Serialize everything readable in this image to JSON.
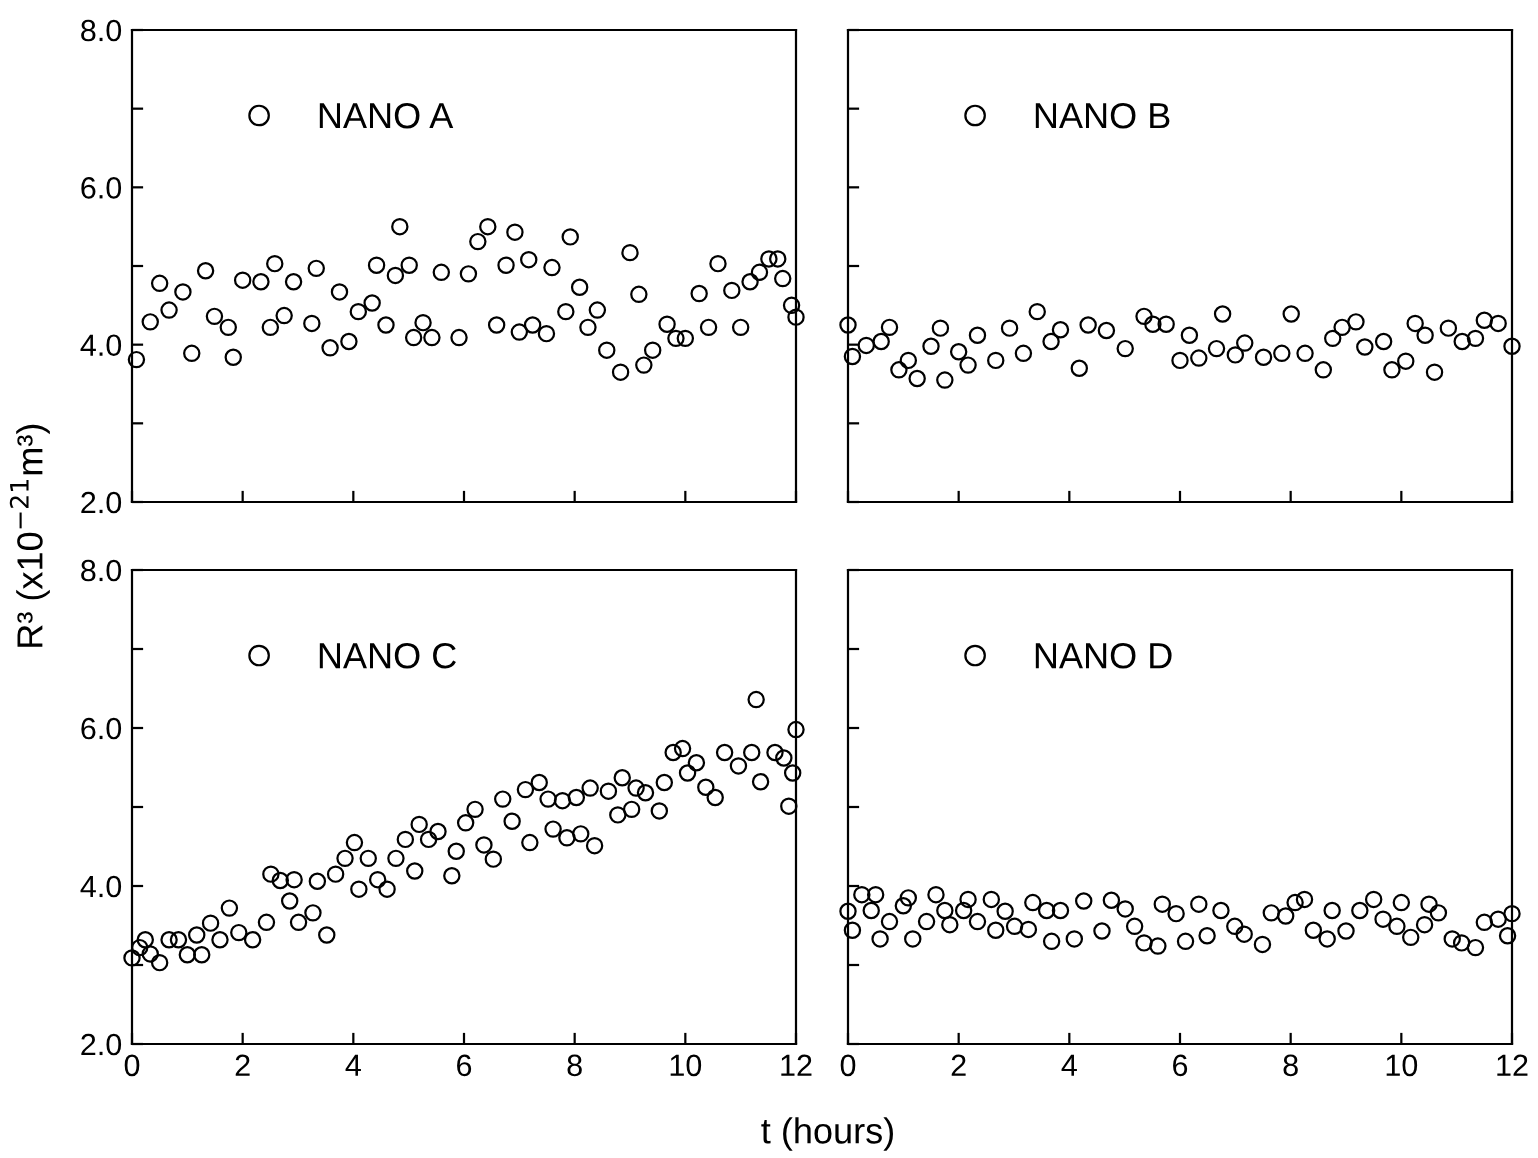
{
  "chart_data": [
    {
      "type": "scatter",
      "ylabel": "R³ (x10$^{−21}$m³)",
      "xlim": [
        0,
        12
      ],
      "ylim": [
        2,
        8
      ],
      "xticks": [
        0,
        2,
        4,
        6,
        8,
        10,
        12
      ],
      "yticks": [
        {
          "value": 2,
          "label": "2.0"
        },
        {
          "value": 3,
          "label": null
        },
        {
          "value": 4,
          "label": "4.0"
        },
        {
          "value": 5,
          "label": null
        },
        {
          "value": 6,
          "label": "6.0"
        },
        {
          "value": 7,
          "label": null
        },
        {
          "value": 8,
          "label": "8.0"
        }
      ],
      "tick_labels": "y",
      "marker": "circle",
      "legend": "top left",
      "grid": false,
      "series": [
        {
          "name": "NANO A",
          "color": "#000000",
          "x": [
            0.08,
            0.33,
            0.5,
            0.67,
            0.92,
            1.08,
            1.33,
            1.49,
            1.74,
            1.83,
            2.0,
            2.33,
            2.5,
            2.58,
            2.75,
            2.92,
            3.25,
            3.33,
            3.58,
            3.75,
            3.92,
            4.09,
            4.34,
            4.42,
            4.59,
            4.76,
            4.84,
            5.01,
            5.09,
            5.26,
            5.42,
            5.59,
            5.91,
            6.08,
            6.25,
            6.43,
            6.59,
            6.76,
            6.92,
            7.0,
            7.17,
            7.24,
            7.49,
            7.59,
            7.84,
            7.92,
            8.09,
            8.24,
            8.41,
            8.58,
            8.83,
            9.0,
            9.16,
            9.25,
            9.41,
            9.67,
            9.83,
            10.0,
            10.25,
            10.42,
            10.59,
            10.84,
            11.0,
            11.17,
            11.34,
            11.51,
            11.67,
            11.76,
            11.92,
            12.0
          ],
          "values": [
            3.81,
            4.29,
            4.78,
            4.44,
            4.67,
            3.89,
            4.94,
            4.36,
            4.22,
            3.84,
            4.82,
            4.8,
            4.22,
            5.03,
            4.37,
            4.8,
            4.27,
            4.97,
            3.96,
            4.67,
            4.04,
            4.42,
            4.53,
            5.01,
            4.25,
            4.88,
            5.5,
            5.01,
            4.09,
            4.28,
            4.09,
            4.92,
            4.09,
            4.9,
            5.31,
            5.5,
            4.25,
            5.01,
            5.43,
            4.16,
            5.08,
            4.25,
            4.14,
            4.98,
            4.42,
            5.37,
            4.73,
            4.22,
            4.44,
            3.93,
            3.65,
            5.17,
            4.64,
            3.74,
            3.93,
            4.26,
            4.08,
            4.08,
            4.65,
            4.22,
            5.03,
            4.69,
            4.22,
            4.8,
            4.92,
            5.09,
            5.09,
            4.84,
            4.5,
            4.35
          ]
        }
      ]
    },
    {
      "type": "scatter",
      "xlim": [
        0,
        12
      ],
      "ylim": [
        2,
        8
      ],
      "xticks": [
        0,
        2,
        4,
        6,
        8,
        10,
        12
      ],
      "yticks": [
        2,
        3,
        4,
        5,
        6,
        7,
        8
      ],
      "tick_labels": false,
      "marker": "circle",
      "legend": "top left",
      "grid": false,
      "series": [
        {
          "name": "NANO B",
          "color": "#000000",
          "x": [
            0,
            0.08,
            0.33,
            0.6,
            0.75,
            0.92,
            1.09,
            1.25,
            1.5,
            1.67,
            1.75,
            2.0,
            2.17,
            2.34,
            2.67,
            2.92,
            3.17,
            3.42,
            3.67,
            3.84,
            4.18,
            4.34,
            4.67,
            5.01,
            5.35,
            5.51,
            5.75,
            6.0,
            6.17,
            6.34,
            6.66,
            6.77,
            7.0,
            7.17,
            7.51,
            7.84,
            8.01,
            8.26,
            8.59,
            8.76,
            8.93,
            9.18,
            9.34,
            9.68,
            9.83,
            10.08,
            10.25,
            10.43,
            10.6,
            10.85,
            11.1,
            11.34,
            11.5,
            11.75,
            12.0
          ],
          "values": [
            4.25,
            3.85,
            3.99,
            4.04,
            4.22,
            3.68,
            3.8,
            3.57,
            3.98,
            4.21,
            3.55,
            3.91,
            3.74,
            4.12,
            3.8,
            4.21,
            3.89,
            4.42,
            4.04,
            4.19,
            3.7,
            4.25,
            4.18,
            3.95,
            4.36,
            4.26,
            4.26,
            3.8,
            4.12,
            3.83,
            3.95,
            4.39,
            3.87,
            4.02,
            3.84,
            3.89,
            4.39,
            3.89,
            3.68,
            4.08,
            4.22,
            4.29,
            3.97,
            4.04,
            3.68,
            3.79,
            4.27,
            4.12,
            3.65,
            4.21,
            4.04,
            4.08,
            4.31,
            4.27,
            3.98
          ]
        }
      ]
    },
    {
      "type": "scatter",
      "xlabel": "t (hours)",
      "xlim": [
        0,
        12
      ],
      "ylim": [
        2,
        8
      ],
      "xticks": [
        0,
        2,
        4,
        6,
        8,
        10,
        12
      ],
      "yticks": [
        {
          "value": 2,
          "label": "2.0"
        },
        {
          "value": 3,
          "label": null
        },
        {
          "value": 4,
          "label": "4.0"
        },
        {
          "value": 5,
          "label": null
        },
        {
          "value": 6,
          "label": "6.0"
        },
        {
          "value": 7,
          "label": null
        },
        {
          "value": 8,
          "label": "8.0"
        }
      ],
      "marker": "circle",
      "legend": "top left",
      "grid": false,
      "series": [
        {
          "name": "NANO C",
          "color": "#000000",
          "x": [
            0,
            0.14,
            0.24,
            0.33,
            0.5,
            0.67,
            0.84,
            1.0,
            1.17,
            1.26,
            1.42,
            1.59,
            1.76,
            1.93,
            2.18,
            2.43,
            2.51,
            2.68,
            2.85,
            2.93,
            3.01,
            3.27,
            3.35,
            3.52,
            3.68,
            3.85,
            4.02,
            4.1,
            4.27,
            4.44,
            4.61,
            4.77,
            4.94,
            5.11,
            5.19,
            5.36,
            5.53,
            5.78,
            5.86,
            6.03,
            6.2,
            6.36,
            6.53,
            6.7,
            6.87,
            7.11,
            7.19,
            7.36,
            7.52,
            7.61,
            7.78,
            7.86,
            8.03,
            8.11,
            8.28,
            8.36,
            8.61,
            8.78,
            8.86,
            9.03,
            9.11,
            9.28,
            9.53,
            9.62,
            9.78,
            9.95,
            10.04,
            10.2,
            10.37,
            10.54,
            10.71,
            10.96,
            11.2,
            11.28,
            11.36,
            11.62,
            11.78,
            11.87,
            11.94,
            12.0
          ],
          "values": [
            3.09,
            3.22,
            3.32,
            3.14,
            3.03,
            3.32,
            3.32,
            3.13,
            3.38,
            3.13,
            3.53,
            3.32,
            3.72,
            3.41,
            3.32,
            3.54,
            4.15,
            4.07,
            3.81,
            4.08,
            3.54,
            3.66,
            4.06,
            3.38,
            4.15,
            4.35,
            4.55,
            3.96,
            4.35,
            4.08,
            3.96,
            4.35,
            4.59,
            4.19,
            4.78,
            4.59,
            4.69,
            4.13,
            4.44,
            4.8,
            4.97,
            4.52,
            4.34,
            5.1,
            4.82,
            5.22,
            4.55,
            5.31,
            5.1,
            4.72,
            5.08,
            4.61,
            5.12,
            4.66,
            5.24,
            4.51,
            5.2,
            4.9,
            5.37,
            4.97,
            5.24,
            5.18,
            4.95,
            5.31,
            5.69,
            5.74,
            5.43,
            5.56,
            5.25,
            5.12,
            5.69,
            5.52,
            5.69,
            6.36,
            5.32,
            5.69,
            5.62,
            5.01,
            5.43,
            5.98
          ]
        }
      ]
    },
    {
      "type": "scatter",
      "xlim": [
        0,
        12
      ],
      "ylim": [
        2,
        8
      ],
      "xticks": [
        0,
        2,
        4,
        6,
        8,
        10,
        12
      ],
      "yticks": [
        2,
        3,
        4,
        5,
        6,
        7,
        8
      ],
      "tick_labels": "x",
      "marker": "circle",
      "legend": "top left",
      "grid": false,
      "series": [
        {
          "name": "NANO D",
          "color": "#000000",
          "x": [
            0,
            0.08,
            0.25,
            0.42,
            0.5,
            0.58,
            0.75,
            1.0,
            1.09,
            1.17,
            1.42,
            1.59,
            1.75,
            1.84,
            2.09,
            2.17,
            2.34,
            2.59,
            2.67,
            2.84,
            3.01,
            3.26,
            3.34,
            3.59,
            3.68,
            3.84,
            4.09,
            4.26,
            4.59,
            4.76,
            5.01,
            5.18,
            5.35,
            5.6,
            5.68,
            5.93,
            6.1,
            6.34,
            6.49,
            6.74,
            6.99,
            7.16,
            7.49,
            7.65,
            7.91,
            8.08,
            8.25,
            8.41,
            8.66,
            8.75,
            9.0,
            9.25,
            9.5,
            9.67,
            9.92,
            10.0,
            10.17,
            10.42,
            10.5,
            10.67,
            10.92,
            11.09,
            11.34,
            11.5,
            11.75,
            11.92,
            12.0
          ],
          "values": [
            3.68,
            3.44,
            3.89,
            3.69,
            3.89,
            3.33,
            3.55,
            3.75,
            3.85,
            3.33,
            3.55,
            3.89,
            3.69,
            3.51,
            3.69,
            3.83,
            3.55,
            3.83,
            3.44,
            3.68,
            3.49,
            3.45,
            3.79,
            3.69,
            3.3,
            3.69,
            3.33,
            3.81,
            3.43,
            3.82,
            3.71,
            3.49,
            3.28,
            3.24,
            3.77,
            3.65,
            3.3,
            3.77,
            3.37,
            3.69,
            3.49,
            3.39,
            3.26,
            3.66,
            3.62,
            3.79,
            3.83,
            3.44,
            3.33,
            3.69,
            3.43,
            3.69,
            3.83,
            3.58,
            3.49,
            3.79,
            3.35,
            3.51,
            3.77,
            3.66,
            3.33,
            3.28,
            3.22,
            3.54,
            3.58,
            3.37,
            3.65
          ]
        }
      ]
    }
  ]
}
